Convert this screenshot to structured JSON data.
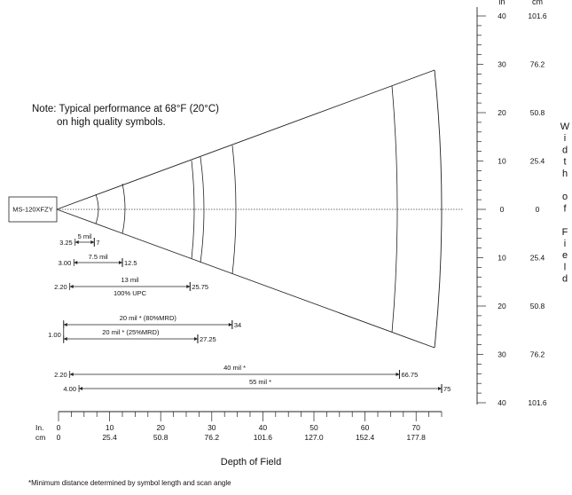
{
  "scanner": {
    "model_label": "MS-120XFZY"
  },
  "note": {
    "line1": "Note:  Typical performance at 68°F (20°C)",
    "line2": "on high quality symbols."
  },
  "depth_axis": {
    "title": "Depth of Field",
    "unit_in": "In.",
    "unit_cm": "cm",
    "ticks": [
      {
        "in": "0",
        "cm": "0"
      },
      {
        "in": "10",
        "cm": "25.4"
      },
      {
        "in": "20",
        "cm": "50.8"
      },
      {
        "in": "30",
        "cm": "76.2"
      },
      {
        "in": "40",
        "cm": "101.6"
      },
      {
        "in": "50",
        "cm": "127.0"
      },
      {
        "in": "60",
        "cm": "152.4"
      },
      {
        "in": "70",
        "cm": "177.8"
      }
    ]
  },
  "width_axis": {
    "unit_in": "in",
    "unit_cm": "cm",
    "title_letters": [
      "W",
      "i",
      "d",
      "t",
      "h",
      "",
      "o",
      "f",
      "",
      "F",
      "i",
      "e",
      "l",
      "d"
    ],
    "ticks": [
      {
        "in": "40",
        "cm": "101.6"
      },
      {
        "in": "30",
        "cm": "76.2"
      },
      {
        "in": "20",
        "cm": "50.8"
      },
      {
        "in": "10",
        "cm": "25.4"
      },
      {
        "in": "0",
        "cm": "0"
      },
      {
        "in": "10",
        "cm": "25.4"
      },
      {
        "in": "20",
        "cm": "50.8"
      },
      {
        "in": "30",
        "cm": "76.2"
      },
      {
        "in": "40",
        "cm": "101.6"
      }
    ]
  },
  "ranges": [
    {
      "label": "5 mil",
      "start": 3.25,
      "end": 7,
      "start_text": "3.25",
      "end_text": "7"
    },
    {
      "label": "7.5 mil",
      "start": 3.0,
      "end": 12.5,
      "start_text": "3.00",
      "end_text": "12.5"
    },
    {
      "label": "13  mil",
      "sublabel": "100% UPC",
      "start": 2.2,
      "end": 25.75,
      "start_text": "2.20",
      "end_text": "25.75"
    },
    {
      "label": "20 mil * (80%MRD)",
      "start": 1.0,
      "end": 34,
      "start_text": "",
      "end_text": "34"
    },
    {
      "label": "20 mil * (25%MRD)",
      "start": 1.0,
      "end": 27.25,
      "start_text": "1.00",
      "end_text": "27.25"
    },
    {
      "label": "40 mil *",
      "start": 2.2,
      "end": 66.75,
      "start_text": "2.20",
      "end_text": "66.75"
    },
    {
      "label": "55 mil *",
      "start": 4.0,
      "end": 75,
      "start_text": "4.00",
      "end_text": "75"
    }
  ],
  "footnote": "*Minimum distance determined by symbol length and scan angle"
}
